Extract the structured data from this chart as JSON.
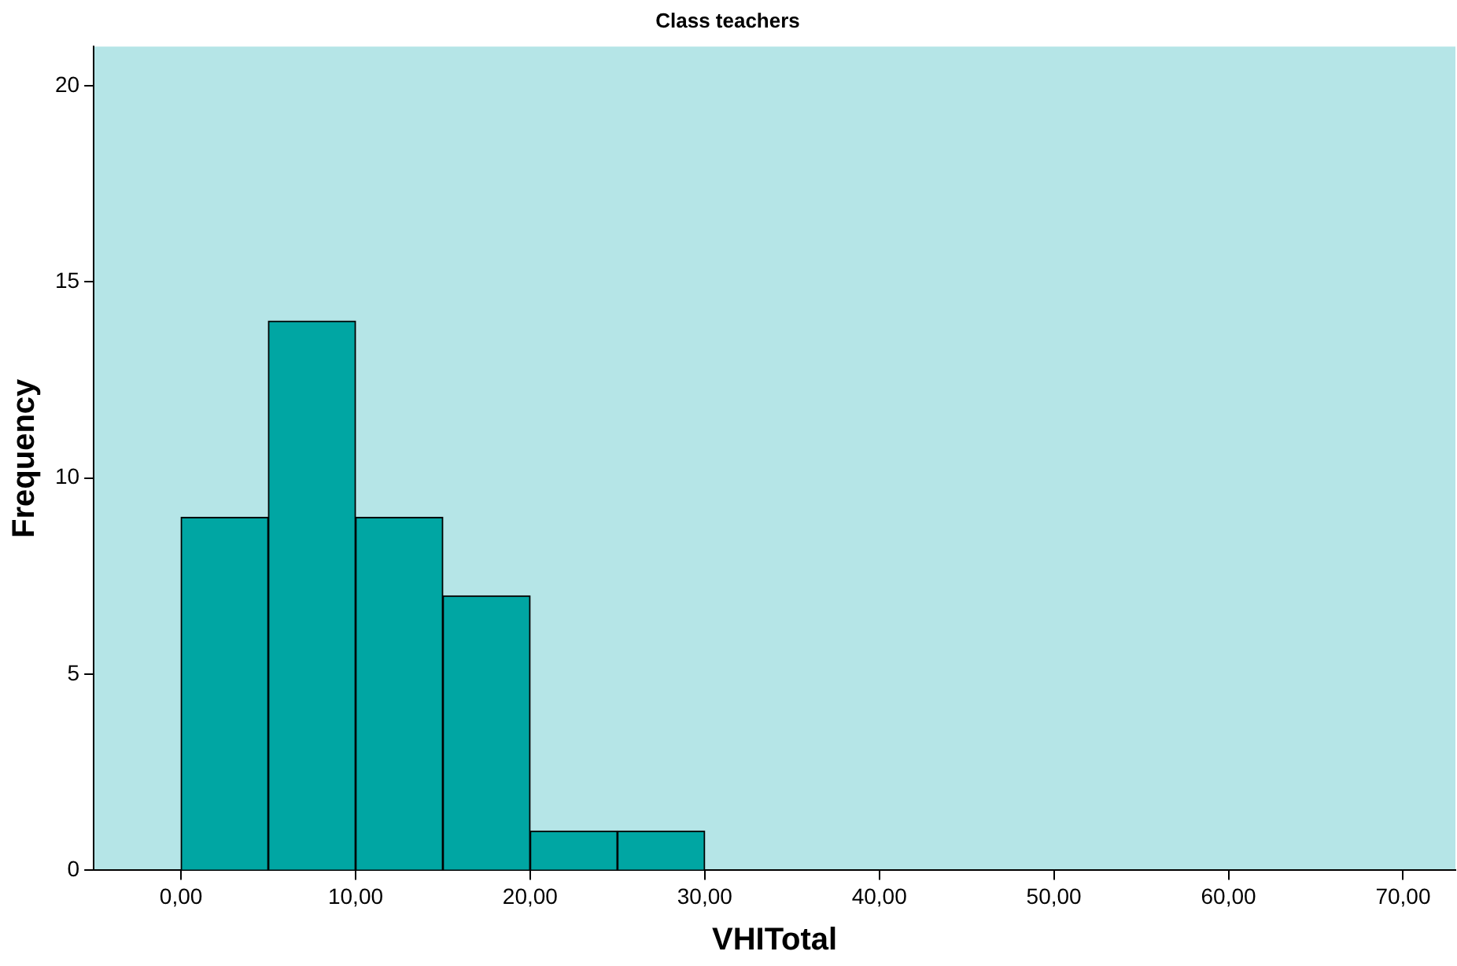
{
  "chart_data": {
    "type": "histogram",
    "title": "Class teachers",
    "xlabel": "VHITotal",
    "ylabel": "Frequency",
    "bins": [
      0,
      5,
      10,
      15,
      20,
      25,
      30
    ],
    "values": [
      9,
      14,
      9,
      7,
      1,
      1
    ],
    "color": "#00a6a3",
    "xlim": [
      -5,
      73
    ],
    "xticks": [
      {
        "value": 0,
        "label": "0,00"
      },
      {
        "value": 10,
        "label": "10,00"
      },
      {
        "value": 20,
        "label": "20,00"
      },
      {
        "value": 30,
        "label": "30,00"
      },
      {
        "value": 40,
        "label": "40,00"
      },
      {
        "value": 50,
        "label": "50,00"
      },
      {
        "value": 60,
        "label": "60,00"
      },
      {
        "value": 70,
        "label": "70,00"
      }
    ],
    "ylim": [
      0,
      21
    ],
    "yticks": [
      0,
      5,
      10,
      15,
      20
    ],
    "grid": false,
    "legend": false
  }
}
